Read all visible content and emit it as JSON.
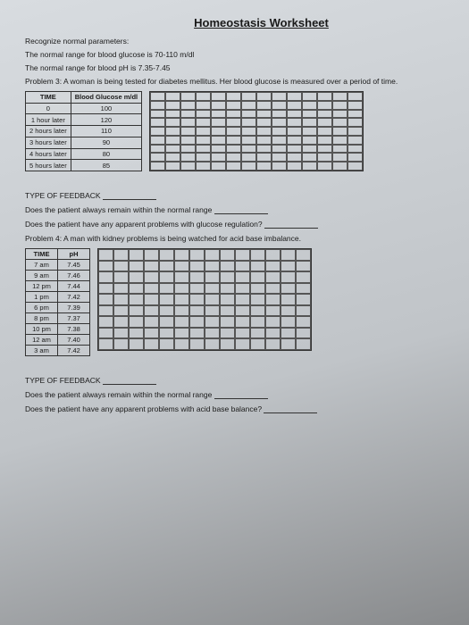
{
  "title": "Homeostasis Worksheet",
  "intro": {
    "l1": "Recognize normal parameters:",
    "l2": "The normal range for blood glucose is 70-110 m/dl",
    "l3": "The normal range for blood pH is 7.35-7.45"
  },
  "problem3": {
    "text": "Problem 3: A woman is being tested for diabetes mellitus. Her blood glucose is measured over a period of time.",
    "table": {
      "headers": [
        "TIME",
        "Blood Glucose m/dl"
      ],
      "rows": [
        [
          "0",
          "100"
        ],
        [
          "1 hour later",
          "120"
        ],
        [
          "2 hours later",
          "110"
        ],
        [
          "3 hours later",
          "90"
        ],
        [
          "4 hours later",
          "80"
        ],
        [
          "5 hours later",
          "85"
        ]
      ]
    },
    "q1_label": "TYPE OF FEEDBACK",
    "q2": "Does the patient always remain within the normal range",
    "q3": "Does the patient have any apparent problems with glucose regulation?"
  },
  "problem4": {
    "text": "Problem 4: A man with kidney problems is being watched for acid base imbalance.",
    "table": {
      "headers": [
        "TIME",
        "pH"
      ],
      "rows": [
        [
          "7 am",
          "7.45"
        ],
        [
          "9 am",
          "7.46"
        ],
        [
          "12 pm",
          "7.44"
        ],
        [
          "1 pm",
          "7.42"
        ],
        [
          "6 pm",
          "7.39"
        ],
        [
          "8 pm",
          "7.37"
        ],
        [
          "10 pm",
          "7.38"
        ],
        [
          "12 am",
          "7.40"
        ],
        [
          "3 am",
          "7.42"
        ]
      ]
    },
    "q1_label": "TYPE OF FEEDBACK",
    "q2": "Does the patient always remain within the normal range",
    "q3": "Does the patient have any apparent problems with acid base balance?"
  },
  "style": {
    "grid_cols": 14,
    "grid_rows": 9,
    "border_color": "#333",
    "font_family": "Arial"
  }
}
